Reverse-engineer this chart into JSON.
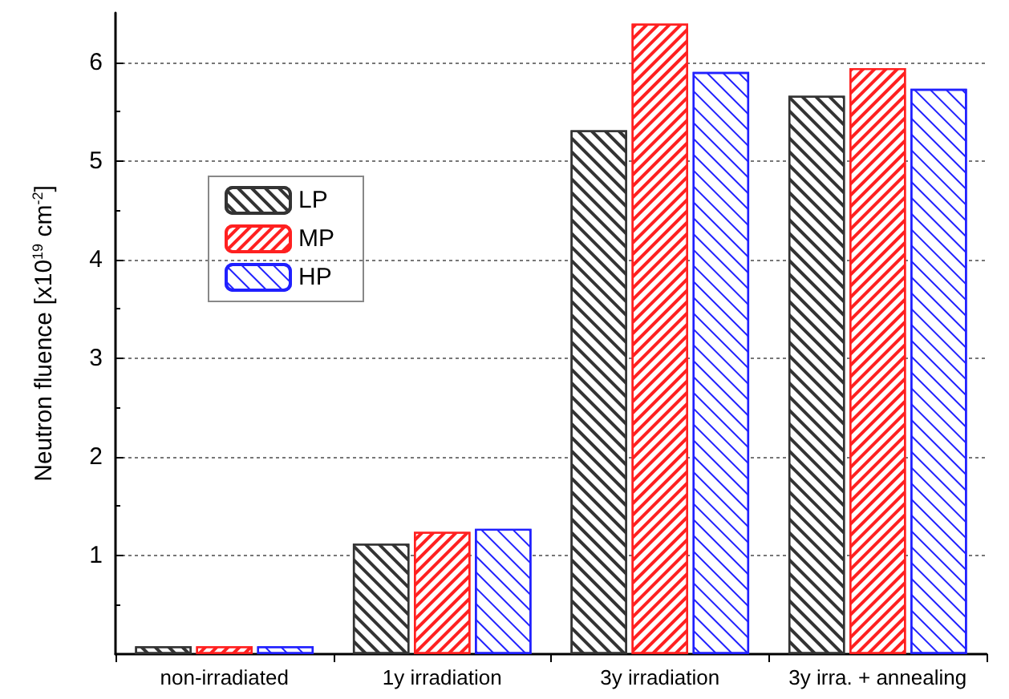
{
  "chart_data": {
    "type": "bar",
    "ylabel": "Neutron fluence [x10$^{19}$ cm$^{-2}$]",
    "categories": [
      "non-irradiated",
      "1y irradiation",
      "3y irradiation",
      "3y irra. + annealing"
    ],
    "series": [
      {
        "name": "LP",
        "color": "#333333",
        "values": [
          0.08,
          1.12,
          5.31,
          5.66
        ]
      },
      {
        "name": "MP",
        "color": "#ff2020",
        "values": [
          0.08,
          1.24,
          6.39,
          5.94
        ]
      },
      {
        "name": "HP",
        "color": "#2020ff",
        "values": [
          0.08,
          1.27,
          5.9,
          5.73
        ]
      }
    ],
    "ylim": [
      0,
      6.5
    ],
    "yticks": [
      1,
      2,
      3,
      4,
      5,
      6
    ],
    "grid": "y",
    "legend": "top left"
  }
}
